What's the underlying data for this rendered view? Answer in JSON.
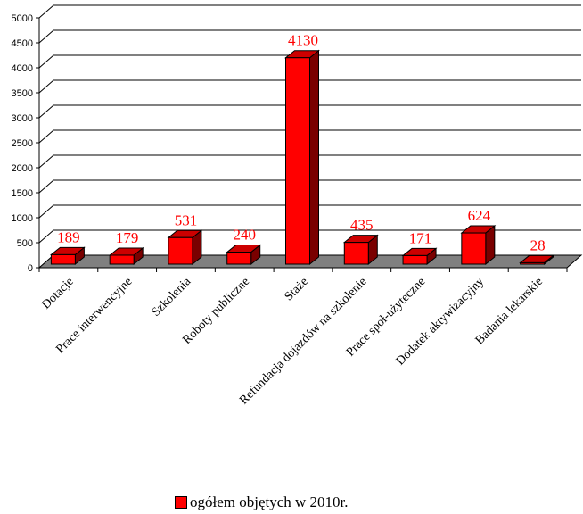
{
  "chart_data": {
    "type": "bar",
    "categories": [
      "Dotacje",
      "Prace interwencyjne",
      "Szkolenia",
      "Roboty publiczne",
      "Staże",
      "Refundacja dojazdów na szkolenie",
      "Prace społ-użyteczne",
      "Dodatek aktywizacyjny",
      "Badania lekarskie"
    ],
    "series": [
      {
        "name": "ogółem objętych w 2010r.",
        "values": [
          189,
          179,
          531,
          240,
          4130,
          435,
          171,
          624,
          28
        ]
      }
    ],
    "ylim": [
      0,
      5000
    ],
    "yticks": [
      "0",
      "500",
      "1000",
      "1500",
      "2000",
      "2500",
      "3000",
      "3500",
      "4000",
      "4500",
      "5000"
    ],
    "grid": true,
    "legend": "bottom-center",
    "style": "3d-bar",
    "colors": {
      "bar_front": "#ff0000",
      "bar_top": "#cc0000",
      "bar_side": "#7a0000",
      "floor": "#808080",
      "labels": "#ff0000"
    }
  }
}
